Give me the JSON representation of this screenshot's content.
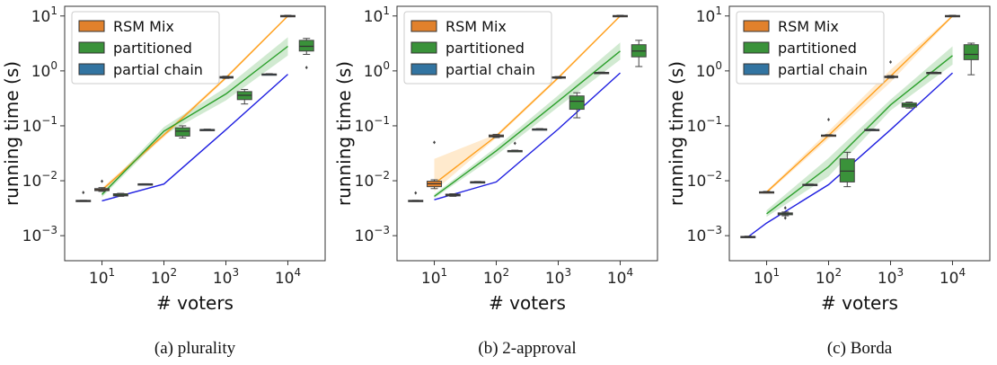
{
  "chart_data": [
    {
      "type": "line",
      "caption": "(a) plurality",
      "xlabel": "# voters",
      "ylabel": "running time (s)",
      "xscale": "log",
      "yscale": "log",
      "xlim": [
        2.5,
        40000
      ],
      "ylim": [
        0.00035,
        15
      ],
      "xticks": [
        {
          "base": "10",
          "exp": "1"
        },
        {
          "base": "10",
          "exp": "2"
        },
        {
          "base": "10",
          "exp": "3"
        },
        {
          "base": "10",
          "exp": "4"
        }
      ],
      "yticks": [
        {
          "base": "10",
          "exp": "−3"
        },
        {
          "base": "10",
          "exp": "−2"
        },
        {
          "base": "10",
          "exp": "−1"
        },
        {
          "base": "10",
          "exp": "0"
        },
        {
          "base": "10",
          "exp": "1"
        }
      ],
      "legend_position": "top-left",
      "series": [
        {
          "name": "RSM Mix",
          "color": "#ff9f1c",
          "box_color": "#e1812c",
          "x": [
            10,
            100,
            1000,
            10000
          ],
          "y": [
            0.0068,
            0.068,
            0.75,
            10
          ],
          "band": [
            [
              0.0062,
              0.0074
            ],
            [
              0.062,
              0.074
            ],
            [
              0.7,
              0.8
            ],
            [
              9.6,
              10.4
            ]
          ],
          "boxes": [
            {
              "x": 10,
              "q1": 0.0066,
              "med": 0.0069,
              "q3": 0.0072,
              "wlo": 0.0064,
              "whi": 0.0075,
              "out": [
                0.0098
              ]
            },
            {
              "x": 1000,
              "q1": 0.74,
              "med": 0.76,
              "q3": 0.79,
              "wlo": 0.73,
              "whi": 0.8,
              "out": []
            },
            {
              "x": 10000,
              "q1": 9.8,
              "med": 10.0,
              "q3": 10.2,
              "wlo": 9.7,
              "whi": 10.3,
              "out": []
            }
          ]
        },
        {
          "name": "partitioned",
          "color": "#2ca02c",
          "box_color": "#3a923a",
          "x": [
            10,
            100,
            1000,
            10000
          ],
          "y": [
            0.0056,
            0.08,
            0.38,
            2.8
          ],
          "band": [
            [
              0.005,
              0.0062
            ],
            [
              0.068,
              0.095
            ],
            [
              0.29,
              0.5
            ],
            [
              1.9,
              4.1
            ]
          ],
          "boxes": [
            {
              "x": 20,
              "q1": 0.0053,
              "med": 0.0055,
              "q3": 0.0058,
              "wlo": 0.0052,
              "whi": 0.0059,
              "out": []
            },
            {
              "x": 200,
              "q1": 0.065,
              "med": 0.08,
              "q3": 0.092,
              "wlo": 0.06,
              "whi": 0.1,
              "out": []
            },
            {
              "x": 2000,
              "q1": 0.3,
              "med": 0.36,
              "q3": 0.42,
              "wlo": 0.25,
              "whi": 0.46,
              "out": []
            },
            {
              "x": 20000,
              "q1": 2.3,
              "med": 2.8,
              "q3": 3.6,
              "wlo": 2.0,
              "whi": 3.9,
              "out": [
                1.15
              ]
            }
          ]
        },
        {
          "name": "partial chain",
          "color": "#1f1fe0",
          "box_color": "#3274a1",
          "x": [
            10,
            100,
            1000,
            10000
          ],
          "y": [
            0.0043,
            0.0087,
            0.085,
            0.87
          ],
          "band": null,
          "boxes": [
            {
              "x": 5,
              "q1": 0.0042,
              "med": 0.0043,
              "q3": 0.0044,
              "wlo": 0.0042,
              "whi": 0.0044,
              "out": [
                0.0061
              ]
            },
            {
              "x": 50,
              "q1": 0.0086,
              "med": 0.0087,
              "q3": 0.0088,
              "wlo": 0.0086,
              "whi": 0.0088,
              "out": []
            },
            {
              "x": 500,
              "q1": 0.084,
              "med": 0.085,
              "q3": 0.086,
              "wlo": 0.083,
              "whi": 0.087,
              "out": []
            },
            {
              "x": 5000,
              "q1": 0.86,
              "med": 0.87,
              "q3": 0.88,
              "wlo": 0.85,
              "whi": 0.89,
              "out": []
            }
          ]
        }
      ]
    },
    {
      "type": "line",
      "caption": "(b) 2-approval",
      "xlabel": "# voters",
      "ylabel": "running time (s)",
      "xscale": "log",
      "yscale": "log",
      "xlim": [
        2.5,
        40000
      ],
      "ylim": [
        0.00035,
        15
      ],
      "xticks": [
        {
          "base": "10",
          "exp": "1"
        },
        {
          "base": "10",
          "exp": "2"
        },
        {
          "base": "10",
          "exp": "3"
        },
        {
          "base": "10",
          "exp": "4"
        }
      ],
      "yticks": [
        {
          "base": "10",
          "exp": "−3"
        },
        {
          "base": "10",
          "exp": "−2"
        },
        {
          "base": "10",
          "exp": "−1"
        },
        {
          "base": "10",
          "exp": "0"
        },
        {
          "base": "10",
          "exp": "1"
        }
      ],
      "legend_position": "top-left",
      "series": [
        {
          "name": "RSM Mix",
          "color": "#ff9f1c",
          "box_color": "#e1812c",
          "x": [
            10,
            100,
            1000,
            10000
          ],
          "y": [
            0.0088,
            0.065,
            0.75,
            10
          ],
          "band": [
            [
              0.0065,
              0.025
            ],
            [
              0.06,
              0.07
            ],
            [
              0.7,
              0.8
            ],
            [
              9.6,
              10.4
            ]
          ],
          "boxes": [
            {
              "x": 10,
              "q1": 0.0078,
              "med": 0.0088,
              "q3": 0.0098,
              "wlo": 0.0072,
              "whi": 0.0104,
              "out": [
                0.05
              ]
            },
            {
              "x": 100,
              "q1": 0.063,
              "med": 0.065,
              "q3": 0.068,
              "wlo": 0.061,
              "whi": 0.07,
              "out": []
            },
            {
              "x": 1000,
              "q1": 0.74,
              "med": 0.76,
              "q3": 0.78,
              "wlo": 0.73,
              "whi": 0.79,
              "out": []
            },
            {
              "x": 10000,
              "q1": 9.8,
              "med": 10.0,
              "q3": 10.2,
              "wlo": 9.7,
              "whi": 10.3,
              "out": []
            }
          ]
        },
        {
          "name": "partitioned",
          "color": "#2ca02c",
          "box_color": "#3a923a",
          "x": [
            10,
            100,
            1000,
            10000
          ],
          "y": [
            0.0052,
            0.035,
            0.28,
            2.3
          ],
          "band": [
            [
              0.0048,
              0.0057
            ],
            [
              0.029,
              0.041
            ],
            [
              0.22,
              0.36
            ],
            [
              1.6,
              3.3
            ]
          ],
          "boxes": [
            {
              "x": 20,
              "q1": 0.0053,
              "med": 0.0055,
              "q3": 0.0057,
              "wlo": 0.0052,
              "whi": 0.0058,
              "out": []
            },
            {
              "x": 200,
              "q1": 0.0345,
              "med": 0.035,
              "q3": 0.0355,
              "wlo": 0.034,
              "whi": 0.036,
              "out": [
                0.048
              ]
            },
            {
              "x": 2000,
              "q1": 0.2,
              "med": 0.28,
              "q3": 0.35,
              "wlo": 0.14,
              "whi": 0.4,
              "out": []
            },
            {
              "x": 20000,
              "q1": 1.8,
              "med": 2.3,
              "q3": 3.0,
              "wlo": 1.2,
              "whi": 3.6,
              "out": []
            }
          ]
        },
        {
          "name": "partial chain",
          "color": "#1f1fe0",
          "box_color": "#3274a1",
          "x": [
            10,
            100,
            1000,
            10000
          ],
          "y": [
            0.0045,
            0.0095,
            0.087,
            0.92
          ],
          "band": null,
          "boxes": [
            {
              "x": 5,
              "q1": 0.0042,
              "med": 0.0043,
              "q3": 0.0044,
              "wlo": 0.0042,
              "whi": 0.0044,
              "out": [
                0.006
              ]
            },
            {
              "x": 50,
              "q1": 0.0094,
              "med": 0.0095,
              "q3": 0.0096,
              "wlo": 0.0093,
              "whi": 0.0097,
              "out": []
            },
            {
              "x": 500,
              "q1": 0.086,
              "med": 0.087,
              "q3": 0.088,
              "wlo": 0.085,
              "whi": 0.089,
              "out": []
            },
            {
              "x": 5000,
              "q1": 0.9,
              "med": 0.92,
              "q3": 0.94,
              "wlo": 0.89,
              "whi": 0.95,
              "out": []
            }
          ]
        }
      ]
    },
    {
      "type": "line",
      "caption": "(c) Borda",
      "xlabel": "# voters",
      "ylabel": "running time (s)",
      "xscale": "log",
      "yscale": "log",
      "xlim": [
        2.5,
        40000
      ],
      "ylim": [
        0.00035,
        15
      ],
      "xticks": [
        {
          "base": "10",
          "exp": "1"
        },
        {
          "base": "10",
          "exp": "2"
        },
        {
          "base": "10",
          "exp": "3"
        },
        {
          "base": "10",
          "exp": "4"
        }
      ],
      "yticks": [
        {
          "base": "10",
          "exp": "−3"
        },
        {
          "base": "10",
          "exp": "−2"
        },
        {
          "base": "10",
          "exp": "−1"
        },
        {
          "base": "10",
          "exp": "0"
        },
        {
          "base": "10",
          "exp": "1"
        }
      ],
      "legend_position": "top-left",
      "series": [
        {
          "name": "RSM Mix",
          "color": "#ff9f1c",
          "box_color": "#e1812c",
          "x": [
            10,
            100,
            1000,
            10000
          ],
          "y": [
            0.0062,
            0.067,
            0.8,
            10
          ],
          "band": [
            [
              0.0058,
              0.0066
            ],
            [
              0.058,
              0.08
            ],
            [
              0.62,
              1.05
            ],
            [
              9.6,
              10.4
            ]
          ],
          "boxes": [
            {
              "x": 10,
              "q1": 0.0061,
              "med": 0.0062,
              "q3": 0.0063,
              "wlo": 0.006,
              "whi": 0.0064,
              "out": []
            },
            {
              "x": 100,
              "q1": 0.066,
              "med": 0.067,
              "q3": 0.068,
              "wlo": 0.065,
              "whi": 0.069,
              "out": [
                0.13
              ]
            },
            {
              "x": 1000,
              "q1": 0.76,
              "med": 0.78,
              "q3": 0.8,
              "wlo": 0.74,
              "whi": 0.82,
              "out": [
                1.45
              ]
            },
            {
              "x": 10000,
              "q1": 9.8,
              "med": 10.0,
              "q3": 10.2,
              "wlo": 9.7,
              "whi": 10.3,
              "out": []
            }
          ]
        },
        {
          "name": "partitioned",
          "color": "#2ca02c",
          "box_color": "#3a923a",
          "x": [
            10,
            100,
            1000,
            10000
          ],
          "y": [
            0.0025,
            0.018,
            0.24,
            1.9
          ],
          "band": [
            [
              0.0022,
              0.0029
            ],
            [
              0.012,
              0.026
            ],
            [
              0.19,
              0.3
            ],
            [
              1.3,
              2.8
            ]
          ],
          "boxes": [
            {
              "x": 20,
              "q1": 0.0024,
              "med": 0.0025,
              "q3": 0.0026,
              "wlo": 0.0023,
              "whi": 0.0027,
              "out": [
                0.0032,
                0.0021
              ]
            },
            {
              "x": 200,
              "q1": 0.0095,
              "med": 0.015,
              "q3": 0.025,
              "wlo": 0.0078,
              "whi": 0.033,
              "out": []
            },
            {
              "x": 2000,
              "q1": 0.22,
              "med": 0.24,
              "q3": 0.26,
              "wlo": 0.21,
              "whi": 0.27,
              "out": []
            },
            {
              "x": 20000,
              "q1": 1.6,
              "med": 2.0,
              "q3": 3.0,
              "wlo": 0.85,
              "whi": 3.2,
              "out": []
            }
          ]
        },
        {
          "name": "partial chain",
          "color": "#1f1fe0",
          "box_color": "#3274a1",
          "x": [
            5,
            10,
            100,
            1000,
            10000
          ],
          "y": [
            0.00095,
            0.0017,
            0.0085,
            0.085,
            0.92
          ],
          "band": null,
          "boxes": [
            {
              "x": 5,
              "q1": 0.00093,
              "med": 0.00095,
              "q3": 0.00097,
              "wlo": 0.00092,
              "whi": 0.00098,
              "out": []
            },
            {
              "x": 50,
              "q1": 0.0084,
              "med": 0.0085,
              "q3": 0.0086,
              "wlo": 0.0083,
              "whi": 0.0087,
              "out": []
            },
            {
              "x": 500,
              "q1": 0.084,
              "med": 0.085,
              "q3": 0.086,
              "wlo": 0.083,
              "whi": 0.087,
              "out": []
            },
            {
              "x": 5000,
              "q1": 0.9,
              "med": 0.92,
              "q3": 0.94,
              "wlo": 0.89,
              "whi": 0.95,
              "out": []
            }
          ]
        }
      ]
    }
  ]
}
